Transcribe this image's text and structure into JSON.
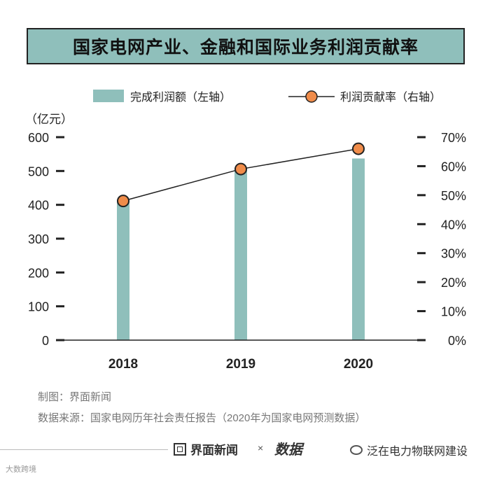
{
  "title": "国家电网产业、金融和国际业务利润贡献率",
  "chart_data": {
    "type": "bar+line",
    "categories": [
      "2018",
      "2019",
      "2020"
    ],
    "series": [
      {
        "name": "完成利润额（左轴）",
        "type": "bar",
        "axis": "left",
        "values": [
          413,
          503,
          537
        ],
        "color": "#8fbfbb"
      },
      {
        "name": "利润贡献率（右轴）",
        "type": "line",
        "axis": "right",
        "values": [
          48,
          59,
          66
        ],
        "color": "#f08c4a"
      }
    ],
    "y_left": {
      "unit_label": "（亿元）",
      "min": 0,
      "max": 600,
      "ticks": [
        "0",
        "100",
        "200",
        "300",
        "400",
        "500",
        "600"
      ]
    },
    "y_right": {
      "min": 0,
      "max": 70,
      "ticks": [
        "0%",
        "10%",
        "20%",
        "30%",
        "40%",
        "50%",
        "60%",
        "70%"
      ]
    },
    "legend": {
      "position": "top"
    }
  },
  "footer": {
    "credit": "制图：界面新闻",
    "source": "数据来源：国家电网历年社会责任报告（2020年为国家电网预测数据）"
  },
  "brand": {
    "jiemian": "界面新闻",
    "times": "×",
    "datawise": "数据",
    "wechat": "泛在电力物联网建设"
  },
  "watermark": "大数跨境"
}
